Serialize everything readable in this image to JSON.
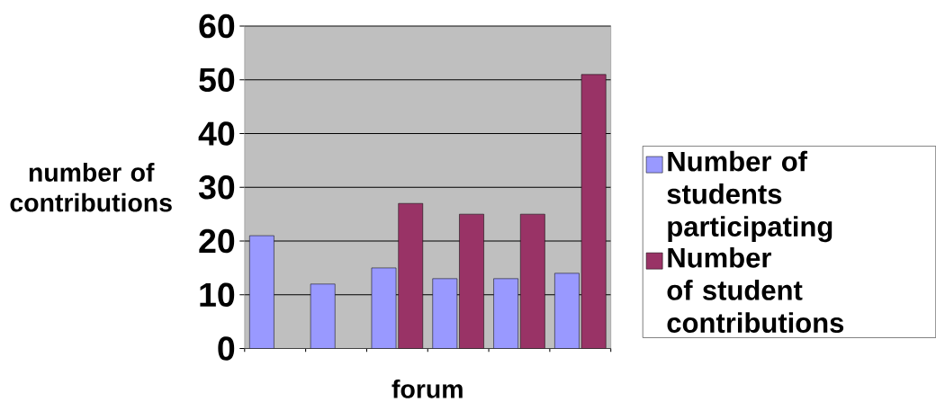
{
  "chart_data": {
    "type": "bar",
    "xlabel": "forum",
    "ylabel": "number of contributions",
    "categories": [
      null,
      null,
      null,
      null,
      null,
      null
    ],
    "series": [
      {
        "name": "Number of students participating",
        "color": "#9999ff",
        "values": [
          21,
          12,
          15,
          13,
          13,
          14
        ]
      },
      {
        "name": "Number of student contributions",
        "color": "#993366",
        "values": [
          null,
          null,
          27,
          25,
          25,
          51
        ]
      }
    ],
    "ylim": [
      0,
      60
    ],
    "yticks": [
      0,
      10,
      20,
      30,
      40,
      50,
      60
    ],
    "grid": "y",
    "legend": "right"
  }
}
